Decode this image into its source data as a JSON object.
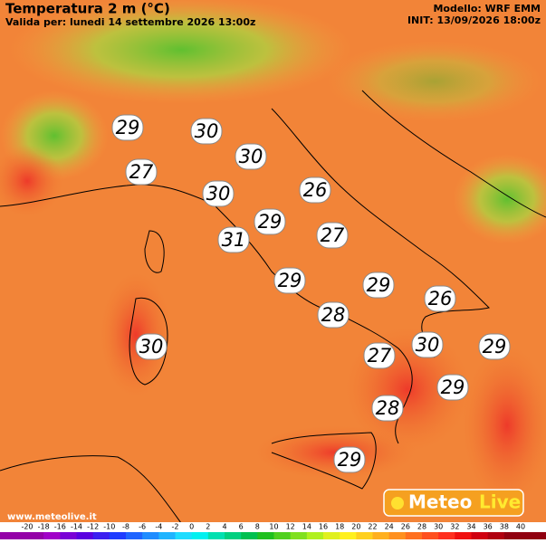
{
  "header": {
    "title": "Temperatura 2 m (°C)",
    "valid": "Valida per: lunedi 14 settembre 2026 13:00z",
    "model": "Modello: WRF EMM",
    "init": "INIT: 13/09/2026 18:00z"
  },
  "labels": [
    29,
    30,
    30,
    27,
    30,
    26,
    29,
    31,
    27,
    29,
    29,
    26,
    28,
    30,
    30,
    29,
    27,
    29,
    28,
    29
  ],
  "colorbar": {
    "ticks": [
      -20,
      -18,
      -16,
      -14,
      -12,
      -10,
      -8,
      -6,
      -4,
      -2,
      0,
      2,
      4,
      6,
      8,
      10,
      12,
      14,
      16,
      18,
      20,
      22,
      24,
      26,
      28,
      30,
      32,
      34,
      36,
      38,
      40
    ],
    "colors": [
      "#9400a8",
      "#a100c8",
      "#7a00d6",
      "#5a00e0",
      "#3c1ef0",
      "#1e3cff",
      "#1e64ff",
      "#1e8cff",
      "#1eb4ff",
      "#1edcff",
      "#00f0f0",
      "#00e0b0",
      "#00d080",
      "#00c050",
      "#20c020",
      "#50d020",
      "#80e020",
      "#b0f020",
      "#e0f020",
      "#fff020",
      "#ffd020",
      "#ffb020",
      "#ff9020",
      "#ff7020",
      "#ff5020",
      "#ff3020",
      "#f01010",
      "#d00010",
      "#b00010",
      "#900010"
    ]
  },
  "logo": {
    "part1": "Meteo",
    "part2": "Live"
  },
  "url": "www.meteolive.it"
}
